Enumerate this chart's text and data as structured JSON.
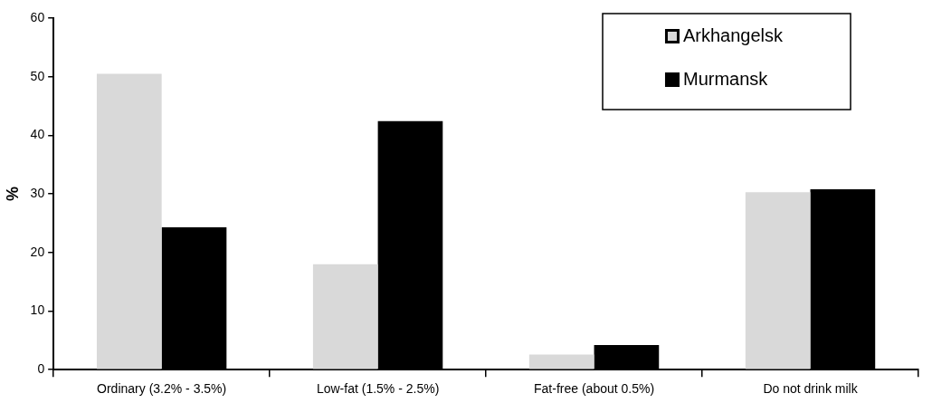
{
  "chart_data": {
    "type": "bar",
    "ylabel": "%",
    "categories": [
      "Ordinary (3.2% - 3.5%)",
      "Low-fat (1.5% - 2.5%)",
      "Fat-free (about 0.5%)",
      "Do not drink milk"
    ],
    "series": [
      {
        "name": "Arkhangelsk",
        "color": "#d9d9d9",
        "values": [
          50.5,
          18,
          2.6,
          30.3
        ]
      },
      {
        "name": "Murmansk",
        "color": "#000000",
        "values": [
          24.3,
          42.4,
          4.2,
          30.8
        ]
      }
    ],
    "ylim": [
      0,
      60
    ],
    "yticks": [
      0,
      10,
      20,
      30,
      40,
      50,
      60
    ],
    "grid": false,
    "legend": "top right"
  }
}
